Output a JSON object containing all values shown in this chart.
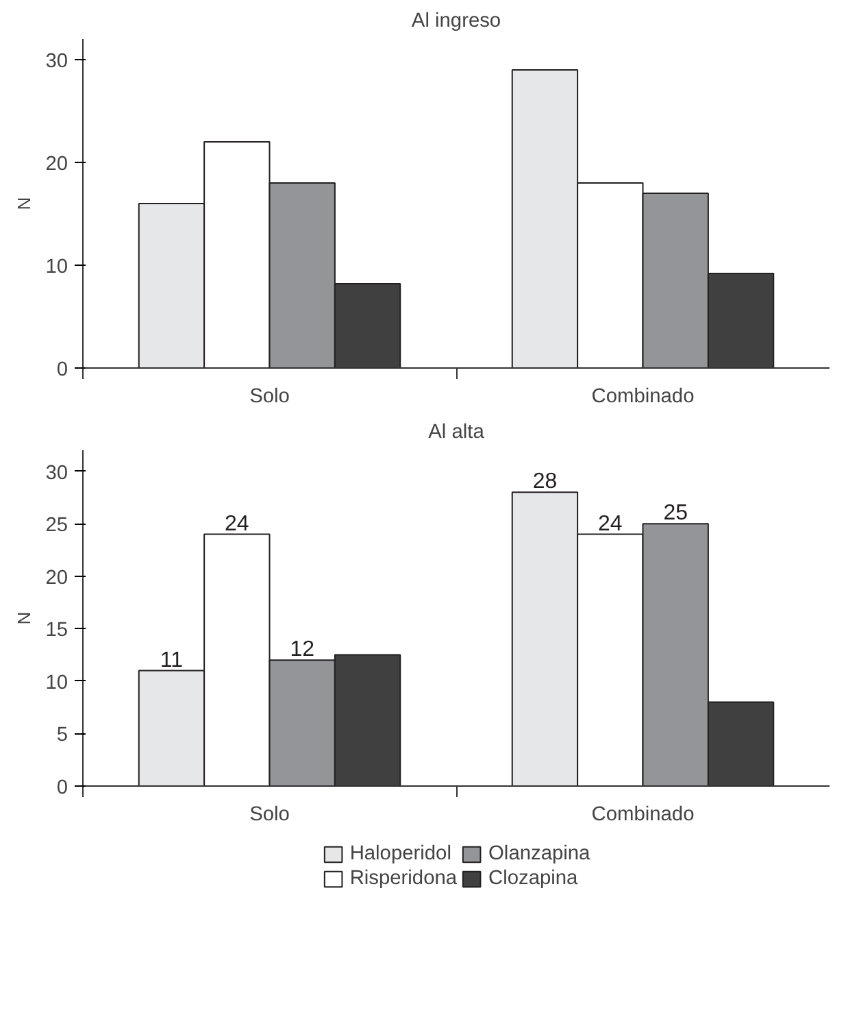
{
  "chart_data": [
    {
      "type": "bar",
      "title": "Al ingreso",
      "ylabel": "N",
      "categories": [
        "Solo",
        "Combinado"
      ],
      "ylim": [
        0,
        32
      ],
      "yticks": [
        0,
        10,
        20,
        30
      ],
      "grid": false,
      "legend": false,
      "series": [
        {
          "color": "#e6e7e8",
          "values": [
            16,
            29
          ]
        },
        {
          "color": "#ffffff",
          "values": [
            22,
            18
          ]
        },
        {
          "color": "#939598",
          "values": [
            18,
            17
          ]
        },
        {
          "color": "#404040",
          "values": [
            8.2,
            9.2
          ]
        }
      ]
    },
    {
      "type": "bar",
      "title": "Al alta",
      "ylabel": "N",
      "categories": [
        "Solo",
        "Combinado"
      ],
      "ylim": [
        0,
        32
      ],
      "yticks": [
        0,
        5,
        10,
        15,
        20,
        25,
        30
      ],
      "grid": false,
      "legend": "bottom",
      "series": [
        {
          "name": "Haloperidol",
          "color": "#e6e7e8",
          "values": [
            11,
            28
          ],
          "value_labels": [
            "11",
            "28"
          ]
        },
        {
          "name": "Risperidona",
          "color": "#ffffff",
          "values": [
            24,
            24
          ],
          "value_labels": [
            "24",
            "24"
          ]
        },
        {
          "name": "Olanzapina",
          "color": "#939598",
          "values": [
            12,
            25
          ],
          "value_labels": [
            "12",
            "25"
          ]
        },
        {
          "name": "Clozapina",
          "color": "#404040",
          "values": [
            12.5,
            8
          ],
          "value_labels": [
            null,
            null
          ]
        }
      ]
    }
  ]
}
